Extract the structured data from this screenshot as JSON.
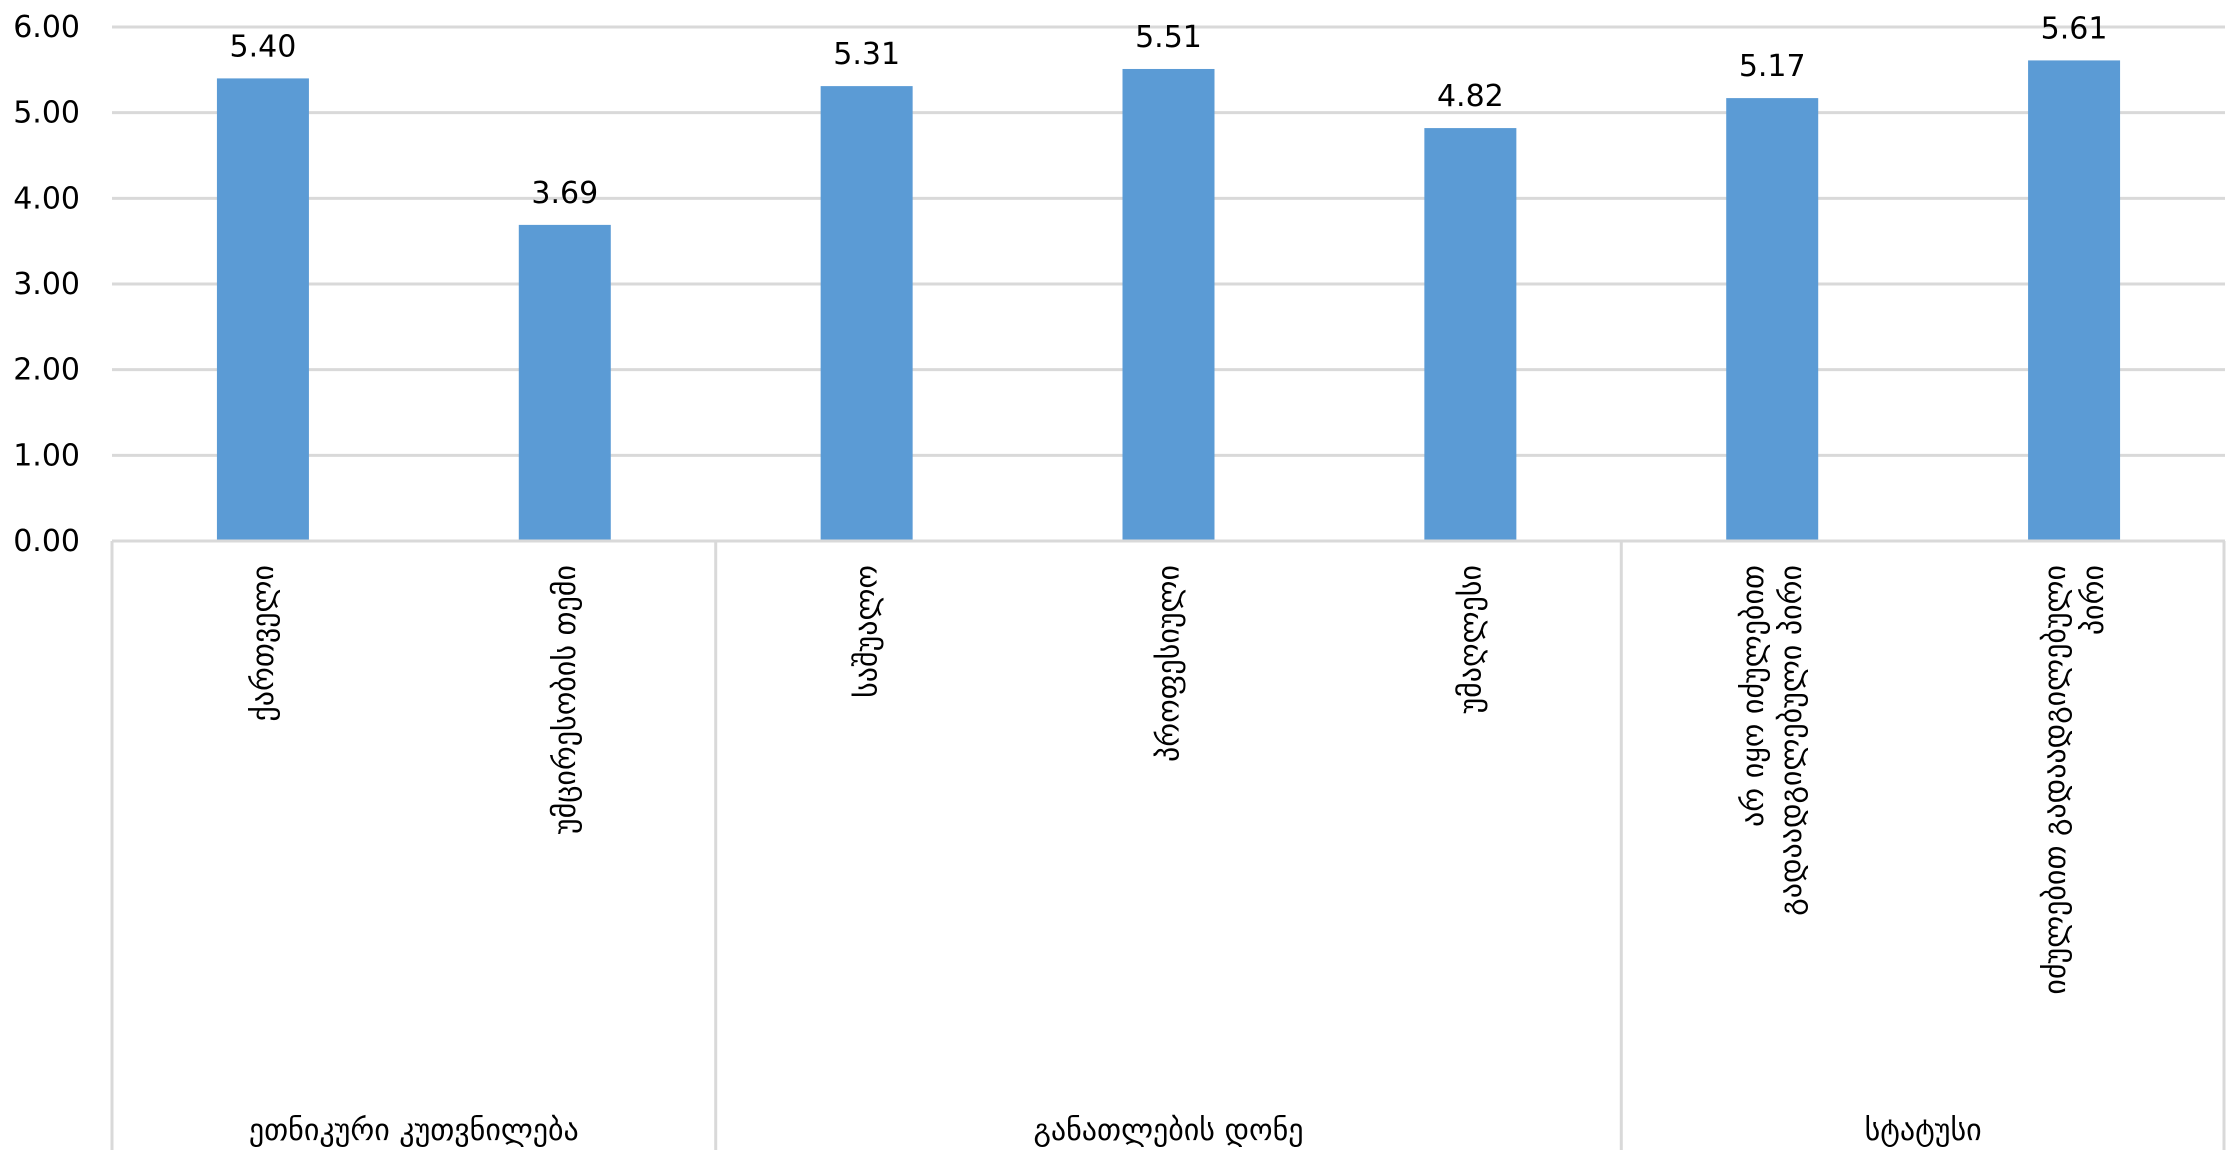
{
  "chart_data": {
    "type": "bar",
    "title": "",
    "xlabel": "",
    "ylabel": "",
    "ylim": [
      0,
      6
    ],
    "y_ticks": [
      "0.00",
      "1.00",
      "2.00",
      "3.00",
      "4.00",
      "5.00",
      "6.00"
    ],
    "grid": true,
    "bar_color": "#5B9BD5",
    "grid_color": "#D9D9D9",
    "categories": [
      "ქართველი",
      "უმცირესობის თემი",
      "საშუალო",
      "პროფესიული",
      "უმაღლესი",
      "არ იყო იძულებით გადაადგილებული პირი",
      "იძულებით გადაადგილებული პირი"
    ],
    "category_lines": [
      [
        "ქართველი"
      ],
      [
        "უმცირესობის თემი"
      ],
      [
        "საშუალო"
      ],
      [
        "პროფესიული"
      ],
      [
        "უმაღლესი"
      ],
      [
        "არ იყო იძულებით",
        "გადაადგილებული პირი"
      ],
      [
        "იძულებით გადაადგილებული",
        "პირი"
      ]
    ],
    "values": [
      5.4,
      3.69,
      5.31,
      5.51,
      4.82,
      5.17,
      5.61
    ],
    "data_labels": [
      "5.40",
      "3.69",
      "5.31",
      "5.51",
      "4.82",
      "5.17",
      "5.61"
    ],
    "groups": [
      {
        "label": "ეთნიკური კუთვნილება",
        "count": 2
      },
      {
        "label": "განათლების დონე",
        "count": 3
      },
      {
        "label": "სტატუსი",
        "count": 2
      }
    ]
  }
}
